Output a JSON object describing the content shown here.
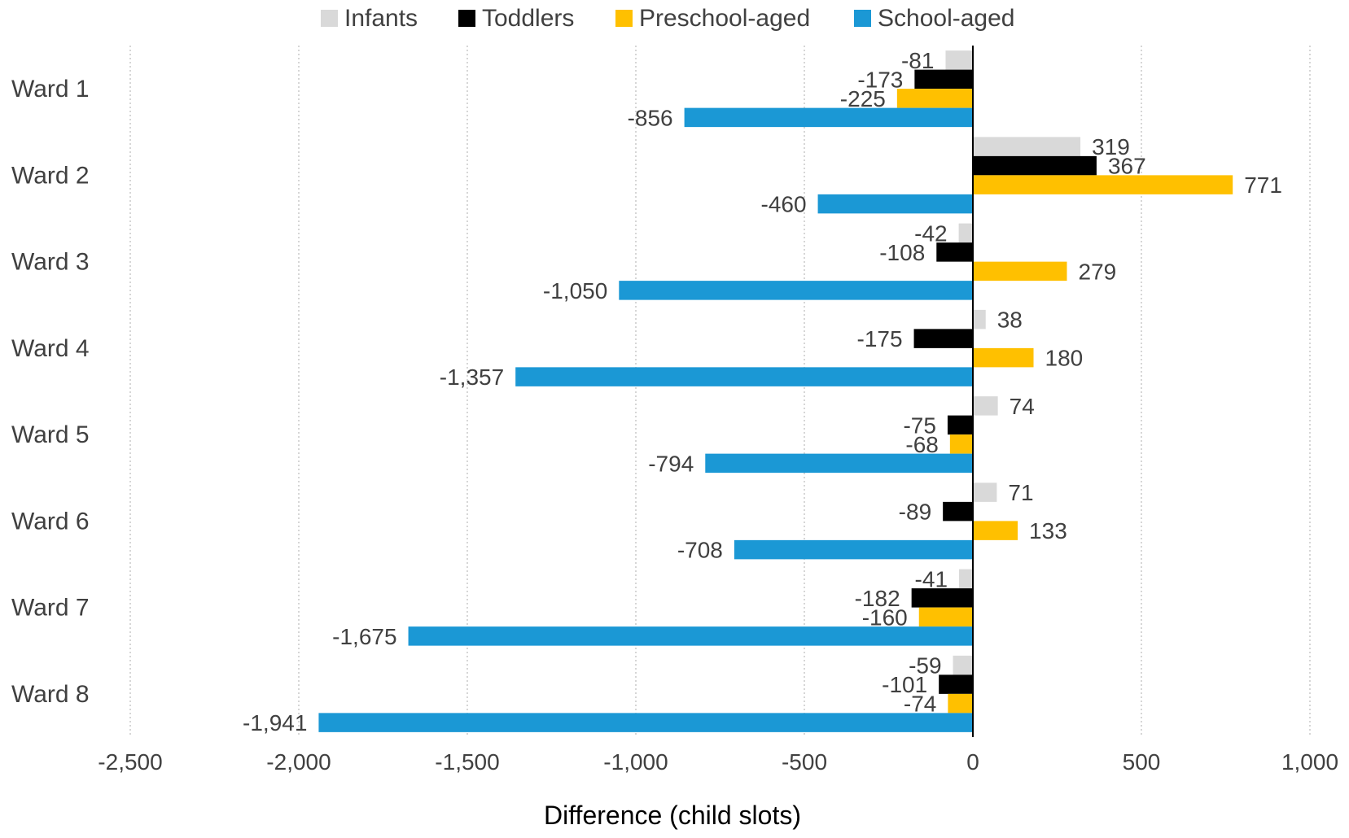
{
  "chart_data": {
    "type": "bar",
    "orientation": "horizontal",
    "title": "",
    "xlabel": "Difference  (child slots)",
    "ylabel": "",
    "categories": [
      "Ward 1",
      "Ward 2",
      "Ward 3",
      "Ward 4",
      "Ward 5",
      "Ward 6",
      "Ward 7",
      "Ward 8"
    ],
    "series": [
      {
        "name": "Infants",
        "color": "#d9d9d9",
        "values": [
          -81,
          319,
          -42,
          38,
          74,
          71,
          -41,
          -59
        ],
        "labels": [
          "-81",
          "319",
          "-42",
          "38",
          "74",
          "71",
          "-41",
          "-59"
        ]
      },
      {
        "name": "Toddlers",
        "color": "#000000",
        "values": [
          -173,
          367,
          -108,
          -175,
          -75,
          -89,
          -182,
          -101
        ],
        "labels": [
          "-173",
          "367",
          "-108",
          "-175",
          "-75",
          "-89",
          "-182",
          "-101"
        ]
      },
      {
        "name": "Preschool-aged",
        "color": "#ffc000",
        "values": [
          -225,
          771,
          279,
          180,
          -68,
          133,
          -160,
          -74
        ],
        "labels": [
          "-225",
          "771",
          "279",
          "180",
          "-68",
          "133",
          "-160",
          "-74"
        ]
      },
      {
        "name": "School-aged",
        "color": "#1b98d5",
        "values": [
          -856,
          -460,
          -1050,
          -1357,
          -794,
          -708,
          -1675,
          -1941
        ],
        "labels": [
          "-856",
          "-460",
          "-1,050",
          "-1,357",
          "-794",
          "-708",
          "-1,675",
          "-1,941"
        ]
      }
    ],
    "xlim": [
      -2500,
      1000
    ],
    "xticks": [
      -2500,
      -2000,
      -1500,
      -1000,
      -500,
      0,
      500,
      1000
    ],
    "xtick_labels": [
      "-2,500",
      "-2,000",
      "-1,500",
      "-1,000",
      "-500",
      "0",
      "500",
      "1,000"
    ],
    "grid": "vertical dotted",
    "legend_position": "top"
  }
}
